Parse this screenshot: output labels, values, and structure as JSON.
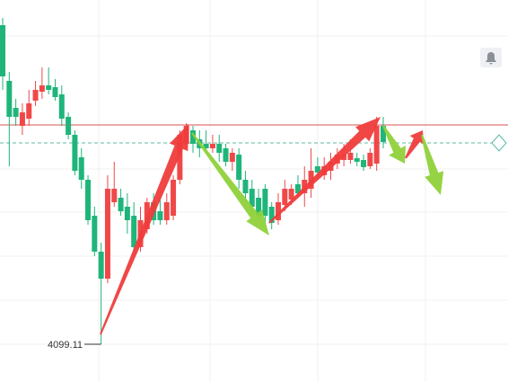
{
  "chart_data": {
    "type": "candlestick",
    "up_color": "#f04848",
    "down_color": "#1fb57a",
    "ylim": [
      4088.61,
      4194.86
    ],
    "open": [
      4187.86,
      4172.36,
      4164.86,
      4159.86,
      4161.86,
      4166.86,
      4169.36,
      4171.11,
      4170.61,
      4168.61,
      4162.36,
      4157.36,
      4151.11,
      4144.86,
      4134.86,
      4124.86,
      4117.36,
      4138.61,
      4139.86,
      4137.36,
      4134.86,
      4126.11,
      4131.11,
      4138.61,
      4136.11,
      4133.61,
      4134.86,
      4144.86,
      4154.86,
      4158.61,
      4156.11,
      4154.86,
      4153.61,
      4154.86,
      4153.61,
      4149.86,
      4151.86,
      4144.86,
      4142.36,
      4139.86,
      4142.36,
      4137.36,
      4133.61,
      4137.86,
      4139.36,
      4143.61,
      4141.11,
      4142.36,
      4148.61,
      4146.11,
      4147.36,
      4149.36,
      4150.36,
      4150.36,
      4150.86,
      4150.36,
      4148.61,
      4149.36,
      4159.86
    ],
    "high": [
      4189.86,
      4174.86,
      4167.36,
      4166.11,
      4169.86,
      4172.36,
      4176.11,
      4176.11,
      4172.86,
      4171.11,
      4163.61,
      4158.61,
      4153.61,
      4146.11,
      4137.36,
      4127.36,
      4146.11,
      4149.86,
      4142.36,
      4141.11,
      4138.61,
      4137.36,
      4139.86,
      4141.11,
      4139.86,
      4141.11,
      4146.11,
      4158.61,
      4160.61,
      4159.86,
      4158.61,
      4158.61,
      4157.36,
      4157.36,
      4154.86,
      4153.61,
      4153.61,
      4147.36,
      4144.86,
      4142.36,
      4143.61,
      4138.61,
      4141.11,
      4144.86,
      4143.61,
      4146.11,
      4148.61,
      4153.61,
      4151.11,
      4151.11,
      4152.36,
      4153.61,
      4154.86,
      4156.11,
      4152.36,
      4151.86,
      4153.61,
      4162.36,
      4162.36
    ],
    "low": [
      4169.86,
      4148.61,
      4159.86,
      4157.36,
      4159.86,
      4165.36,
      4167.36,
      4168.61,
      4166.86,
      4159.86,
      4156.11,
      4146.11,
      4142.36,
      4132.36,
      4123.61,
      4099.11,
      4116.11,
      4137.36,
      4134.86,
      4129.86,
      4124.86,
      4124.86,
      4129.86,
      4132.36,
      4132.36,
      4132.36,
      4133.61,
      4143.61,
      4153.61,
      4152.36,
      4151.11,
      4152.36,
      4152.36,
      4149.86,
      4148.61,
      4147.36,
      4142.36,
      4138.61,
      4134.86,
      4133.61,
      4132.36,
      4131.11,
      4132.36,
      4136.11,
      4137.86,
      4139.86,
      4137.36,
      4139.86,
      4144.86,
      4144.86,
      4144.86,
      4147.86,
      4148.61,
      4149.36,
      4148.61,
      4147.36,
      4147.86,
      4147.36,
      4153.61
    ],
    "close": [
      4173.61,
      4162.36,
      4162.36,
      4163.61,
      4166.11,
      4169.86,
      4171.11,
      4169.86,
      4167.86,
      4161.86,
      4157.36,
      4147.36,
      4144.86,
      4133.61,
      4124.86,
      4117.36,
      4142.36,
      4142.36,
      4136.11,
      4133.61,
      4126.11,
      4133.61,
      4138.61,
      4133.61,
      4133.61,
      4138.61,
      4144.86,
      4157.36,
      4159.86,
      4154.86,
      4153.61,
      4153.61,
      4154.86,
      4152.36,
      4149.86,
      4152.36,
      4144.86,
      4141.11,
      4137.36,
      4134.86,
      4134.86,
      4132.86,
      4138.61,
      4142.36,
      4142.36,
      4141.11,
      4144.86,
      4147.36,
      4146.86,
      4148.61,
      4149.86,
      4151.86,
      4151.86,
      4152.36,
      4149.86,
      4148.36,
      4152.36,
      4159.86,
      4155.36
    ],
    "levels": [
      {
        "value": 4160.11,
        "color": "#d9534f",
        "style": "solid"
      },
      {
        "value": 4155.11,
        "color": "#5cb8a6",
        "style": "dashed"
      }
    ]
  }
}
